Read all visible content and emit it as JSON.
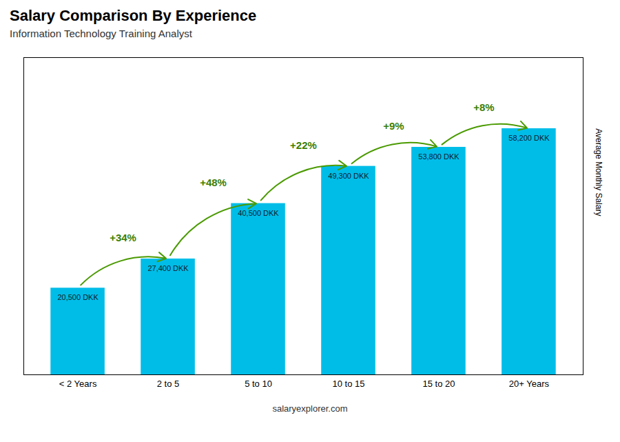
{
  "chart_data": {
    "type": "bar",
    "title": "Salary Comparison By Experience",
    "subtitle": "Information Technology Training Analyst",
    "ylabel": "Average Monthly Salary",
    "caption": "salaryexplorer.com",
    "categories": [
      "< 2 Years",
      "2 to 5",
      "5 to 10",
      "10 to 15",
      "15 to 20",
      "20+ Years"
    ],
    "values": [
      20500,
      27400,
      40500,
      49300,
      53800,
      58200
    ],
    "value_labels": [
      "20,500 DKK",
      "27,400 DKK",
      "40,500 DKK",
      "49,300 DKK",
      "53,800 DKK",
      "58,200 DKK"
    ],
    "data_labels": true,
    "annotations": [
      "+34%",
      "+48%",
      "+22%",
      "+9%",
      "+8%"
    ],
    "color": "#00bde8",
    "ylim": [
      0,
      75000
    ],
    "grid": false,
    "tick_labels": "x"
  }
}
